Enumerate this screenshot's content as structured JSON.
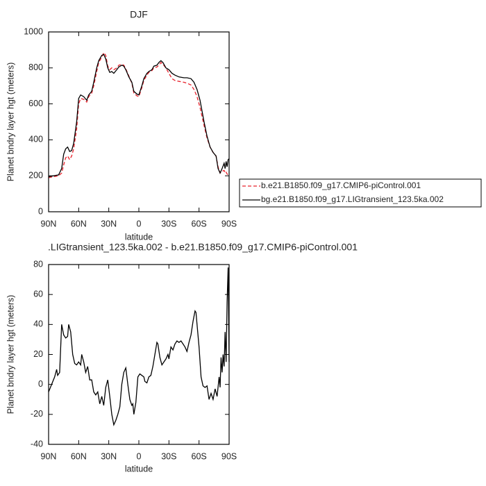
{
  "chart_data": [
    {
      "type": "line",
      "title": "DJF",
      "xlabel": "latitude",
      "ylabel": "Planet bndry layer hgt (meters)",
      "xlim": [
        90,
        -90
      ],
      "ylim": [
        0,
        1000
      ],
      "xticks": [
        {
          "value": 90,
          "label": "90N"
        },
        {
          "value": 60,
          "label": "60N"
        },
        {
          "value": 30,
          "label": "30N"
        },
        0,
        {
          "value": -30,
          "label": "30S"
        },
        {
          "value": -60,
          "label": "60S"
        },
        {
          "value": -90,
          "label": "90S"
        }
      ],
      "yticks": [
        0,
        200,
        400,
        600,
        800,
        1000
      ],
      "legend": "right",
      "x": [
        90,
        85,
        80,
        77,
        75,
        73,
        71,
        69,
        67,
        65,
        62,
        60,
        58,
        55,
        52,
        50,
        47,
        45,
        42,
        40,
        37,
        35,
        33,
        31,
        29,
        27,
        25,
        22,
        20,
        17,
        15,
        13,
        10,
        7,
        5,
        2,
        0,
        -3,
        -5,
        -8,
        -10,
        -13,
        -15,
        -18,
        -20,
        -22,
        -24,
        -27,
        -30,
        -33,
        -36,
        -40,
        -45,
        -48,
        -52,
        -55,
        -58,
        -61,
        -65,
        -68,
        -71,
        -74,
        -77,
        -79,
        -81,
        -83,
        -85,
        -86,
        -87,
        -88,
        -89,
        -90
      ],
      "series": [
        {
          "name": "b.e21.B1850.f09_g17.CMIP6-piControl.001",
          "color": "#e8202a",
          "dash": true,
          "values": [
            190,
            195,
            200,
            215,
            260,
            300,
            310,
            290,
            310,
            350,
            460,
            600,
            630,
            625,
            610,
            640,
            660,
            700,
            780,
            830,
            860,
            885,
            870,
            810,
            790,
            800,
            790,
            800,
            815,
            820,
            815,
            795,
            755,
            715,
            660,
            645,
            640,
            690,
            730,
            760,
            775,
            785,
            800,
            805,
            815,
            830,
            820,
            800,
            770,
            740,
            730,
            725,
            720,
            715,
            705,
            680,
            640,
            580,
            480,
            410,
            360,
            330,
            310,
            250,
            215,
            225,
            230,
            215,
            220,
            210,
            205,
            200
          ]
        },
        {
          "name": "bg.e21.B1850.f09_g17.LIGtransient_123.5ka.002",
          "color": "#000000",
          "dash": false,
          "values": [
            195,
            200,
            205,
            240,
            320,
            350,
            360,
            335,
            340,
            380,
            500,
            630,
            650,
            640,
            620,
            650,
            670,
            720,
            800,
            840,
            870,
            875,
            850,
            800,
            775,
            780,
            770,
            790,
            805,
            815,
            810,
            790,
            750,
            720,
            670,
            655,
            650,
            700,
            740,
            770,
            780,
            790,
            810,
            815,
            830,
            840,
            830,
            800,
            790,
            770,
            760,
            750,
            745,
            745,
            740,
            720,
            680,
            620,
            500,
            420,
            360,
            330,
            310,
            240,
            215,
            240,
            270,
            240,
            280,
            250,
            290,
            295
          ]
        }
      ]
    },
    {
      "type": "line",
      "title": ".LIGtransient_123.5ka.002 - b.e21.B1850.f09_g17.CMIP6-piControl.001",
      "xlabel": "latitude",
      "ylabel": "Planet bndry layer hgt (meters)",
      "xlim": [
        90,
        -90
      ],
      "ylim": [
        -40,
        80
      ],
      "xticks": [
        {
          "value": 90,
          "label": "90N"
        },
        {
          "value": 60,
          "label": "60N"
        },
        {
          "value": 30,
          "label": "30N"
        },
        0,
        {
          "value": -30,
          "label": "30S"
        },
        {
          "value": -60,
          "label": "60S"
        },
        {
          "value": -90,
          "label": "90S"
        }
      ],
      "yticks": [
        -40,
        -20,
        0,
        20,
        40,
        60,
        80
      ],
      "x": [
        90,
        87,
        84,
        82,
        81,
        79,
        77,
        75,
        73,
        71,
        70,
        68,
        66,
        64,
        62,
        60,
        58,
        57,
        55,
        53,
        51,
        49,
        47,
        45,
        43,
        41,
        39,
        37,
        35,
        33,
        31,
        29,
        27,
        25,
        23,
        21,
        19,
        17,
        15,
        13,
        11,
        9,
        7,
        6,
        5,
        3,
        1,
        -1,
        -3,
        -5,
        -6,
        -8,
        -10,
        -12,
        -14,
        -16,
        -18,
        -19,
        -21,
        -23,
        -25,
        -27,
        -29,
        -30,
        -32,
        -34,
        -36,
        -38,
        -40,
        -42,
        -44,
        -46,
        -48,
        -50,
        -52,
        -54,
        -56,
        -57,
        -58,
        -60,
        -62,
        -64,
        -66,
        -68,
        -70,
        -72,
        -74,
        -76,
        -78,
        -80,
        -81,
        -82,
        -83,
        -84,
        -85,
        -86,
        -87,
        -88,
        -89,
        -90
      ],
      "series": [
        {
          "color": "#000000",
          "dash": false,
          "values": [
            -5,
            0,
            5,
            10,
            6,
            8,
            40,
            33,
            31,
            32,
            40,
            35,
            20,
            14,
            13,
            15,
            13,
            20,
            15,
            8,
            12,
            3,
            3,
            -5,
            -7,
            -5,
            -13,
            -8,
            -14,
            -2,
            3,
            -8,
            -20,
            -27,
            -24,
            -20,
            -15,
            0,
            8,
            11,
            0,
            -10,
            -14,
            -13,
            -20,
            -12,
            5,
            7,
            6,
            5,
            2,
            1,
            5,
            6,
            12,
            20,
            28,
            27,
            18,
            13,
            15,
            17,
            20,
            17,
            25,
            23,
            27,
            29,
            28,
            29,
            27,
            25,
            22,
            28,
            33,
            42,
            49,
            48,
            40,
            25,
            5,
            -1,
            -2,
            -1,
            -10,
            -6,
            -10,
            -3,
            -8,
            5,
            -2,
            18,
            8,
            20,
            12,
            35,
            15,
            55,
            78,
            15
          ]
        }
      ]
    }
  ]
}
